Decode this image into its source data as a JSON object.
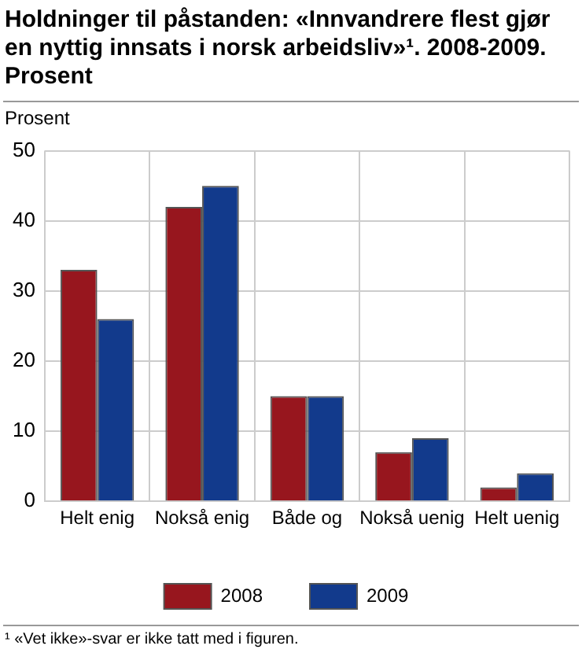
{
  "chart_data": {
    "type": "bar",
    "title": "Holdninger til påstanden: «Innvandrere flest gjør en nyttig innsats i norsk arbeidsliv»¹. 2008-2009. Prosent",
    "ylabel": "Prosent",
    "categories": [
      "Helt enig",
      "Nokså enig",
      "Både og",
      "Nokså uenig",
      "Helt uenig"
    ],
    "series": [
      {
        "name": "2008",
        "color": "#97161e",
        "values": [
          33,
          42,
          15,
          7,
          2
        ]
      },
      {
        "name": "2009",
        "color": "#123a8c",
        "values": [
          26,
          45,
          15,
          9,
          4
        ]
      }
    ],
    "ylim": [
      0,
      50
    ],
    "yticks": [
      0,
      10,
      20,
      30,
      40,
      50
    ],
    "grid": true,
    "legend": "bottom",
    "annotations": [
      "¹ «Vet ikke»-svar er ikke tatt med i figuren."
    ]
  }
}
